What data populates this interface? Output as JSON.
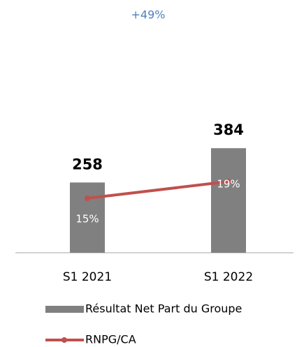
{
  "chart_data": {
    "type": "bar",
    "annotation": "+49%",
    "categories": [
      "S1 2021",
      "S1 2022"
    ],
    "series": [
      {
        "name": "Résultat Net Part du Groupe",
        "color": "#808080",
        "values": [
          258,
          384
        ]
      },
      {
        "name": "RNPG/CA",
        "type": "line",
        "axis": "y2",
        "color": "#c0504d",
        "values": [
          15,
          19
        ],
        "value_labels": [
          "15%",
          "19%"
        ]
      }
    ],
    "ylim": [
      0,
      400
    ],
    "y2lim": [
      2,
      28
    ],
    "grid": false,
    "legend": "bottom"
  }
}
